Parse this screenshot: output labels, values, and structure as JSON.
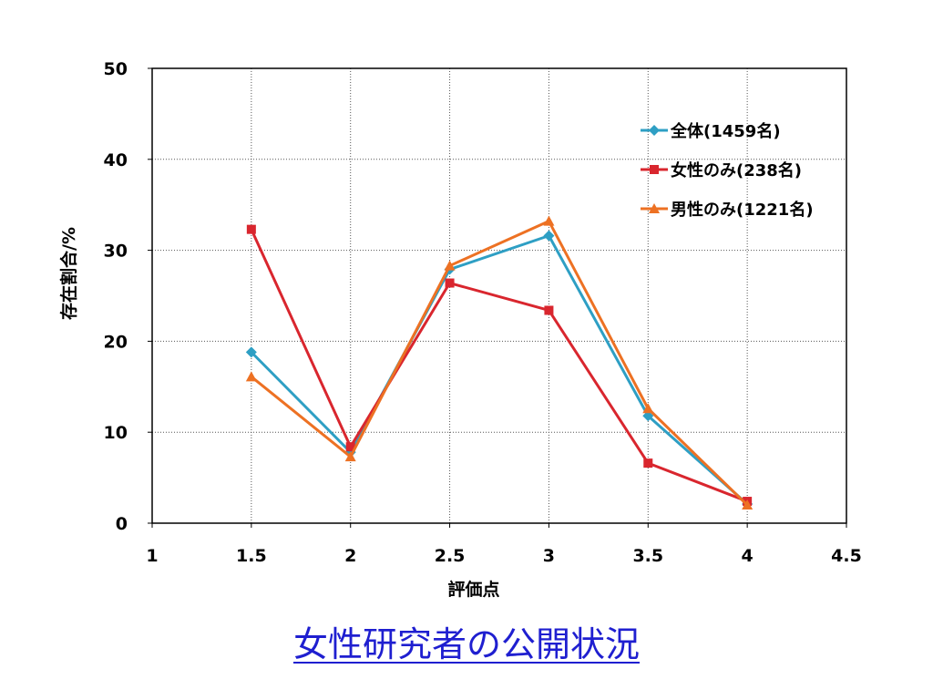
{
  "slide_title": "女性研究者の公開状況",
  "chart_data": {
    "type": "line",
    "title": "",
    "xlabel": "評価点",
    "ylabel": "存在割合/%",
    "xlim": [
      1,
      4.5
    ],
    "ylim": [
      0,
      50
    ],
    "x_ticks": [
      "1",
      "1.5",
      "2",
      "2.5",
      "3",
      "3.5",
      "4",
      "4.5"
    ],
    "y_ticks": [
      "0",
      "10",
      "20",
      "30",
      "40",
      "50"
    ],
    "grid": true,
    "legend_position": "top-right",
    "x": [
      1.5,
      2,
      2.5,
      3,
      3.5,
      4
    ],
    "series": [
      {
        "name": "全体(1459名)",
        "color": "#2e9fc4",
        "marker": "diamond",
        "values": [
          18.8,
          7.8,
          27.9,
          31.6,
          11.8,
          2.1
        ]
      },
      {
        "name": "女性のみ(238名)",
        "color": "#d9262e",
        "marker": "square",
        "values": [
          32.3,
          8.4,
          26.4,
          23.4,
          6.6,
          2.4
        ]
      },
      {
        "name": "男性のみ(1221名)",
        "color": "#ed7123",
        "marker": "triangle",
        "values": [
          16.1,
          7.3,
          28.3,
          33.2,
          12.6,
          2.0
        ]
      }
    ]
  }
}
